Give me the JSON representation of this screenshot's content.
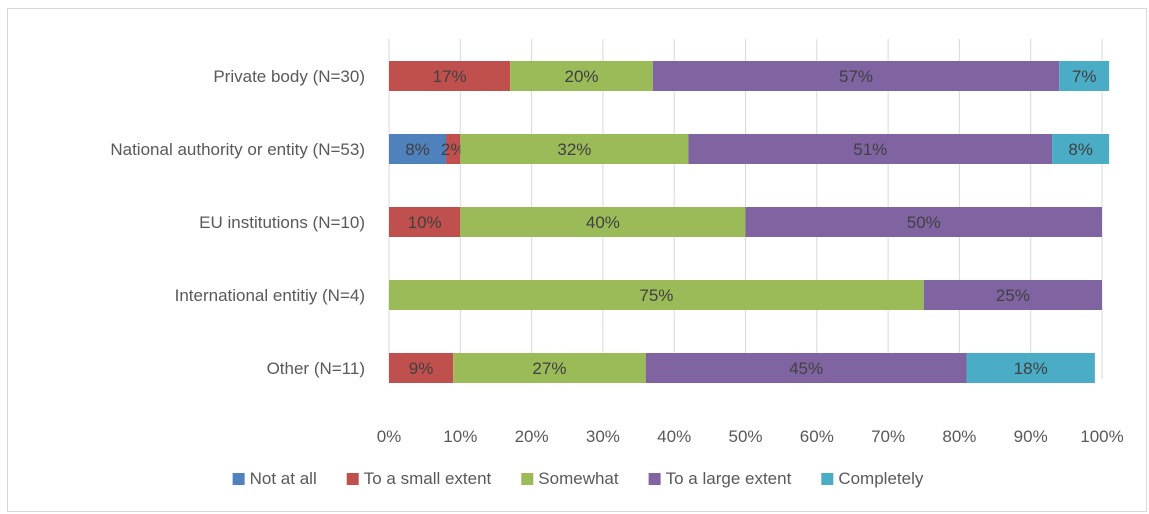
{
  "chart_data": {
    "type": "bar",
    "orientation": "horizontal",
    "stacked": true,
    "percent_scale": true,
    "categories": [
      "Private body (N=30)",
      "National authority or entity (N=53)",
      "EU institutions (N=10)",
      "International entitiy (N=4)",
      "Other (N=11)"
    ],
    "series": [
      {
        "name": "Not at all",
        "color": "#4f81bd",
        "values": [
          0,
          8,
          0,
          0,
          0
        ],
        "labels": [
          "",
          "8%",
          "",
          "",
          ""
        ]
      },
      {
        "name": "To a small extent",
        "color": "#c0504d",
        "values": [
          17,
          2,
          10,
          0,
          9
        ],
        "labels": [
          "17%",
          "2%",
          "10%",
          "",
          "9%"
        ]
      },
      {
        "name": "Somewhat",
        "color": "#9bbb59",
        "values": [
          20,
          32,
          40,
          75,
          27
        ],
        "labels": [
          "20%",
          "32%",
          "40%",
          "75%",
          "27%"
        ]
      },
      {
        "name": "To a large extent",
        "color": "#8064a2",
        "values": [
          57,
          51,
          50,
          25,
          45
        ],
        "labels": [
          "57%",
          "51%",
          "50%",
          "25%",
          "45%"
        ]
      },
      {
        "name": "Completely",
        "color": "#4bacc6",
        "values": [
          7,
          8,
          0,
          0,
          18
        ],
        "labels": [
          "7%",
          "8%",
          "",
          "",
          "18%"
        ]
      }
    ],
    "xlim": [
      0,
      100
    ],
    "xticks": [
      "0%",
      "10%",
      "20%",
      "30%",
      "40%",
      "50%",
      "60%",
      "70%",
      "80%",
      "90%",
      "100%"
    ],
    "grid": "vertical",
    "legend_position": "bottom"
  }
}
